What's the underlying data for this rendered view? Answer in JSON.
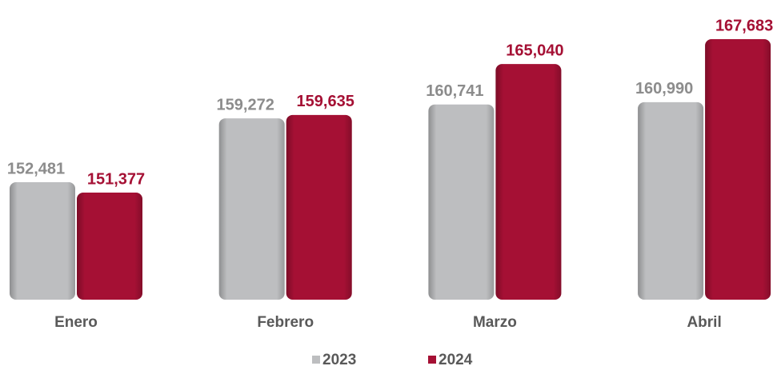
{
  "chart_data": {
    "type": "bar",
    "categories": [
      "Enero",
      "Febrero",
      "Marzo",
      "Abril"
    ],
    "series": [
      {
        "name": "2023",
        "color": "#bdbec0",
        "label_color": "#8c8c8c",
        "values": [
          152481,
          159272,
          160741,
          160990
        ],
        "value_labels": [
          "152,481",
          "159,272",
          "160,741",
          "160,990"
        ]
      },
      {
        "name": "2024",
        "color": "#a51034",
        "label_color": "#a51034",
        "values": [
          151377,
          159635,
          165040,
          167683
        ],
        "value_labels": [
          "151,377",
          "159,635",
          "165,040",
          "167,683"
        ]
      }
    ],
    "ylim": [
      140000,
      171000
    ],
    "grid": false
  }
}
